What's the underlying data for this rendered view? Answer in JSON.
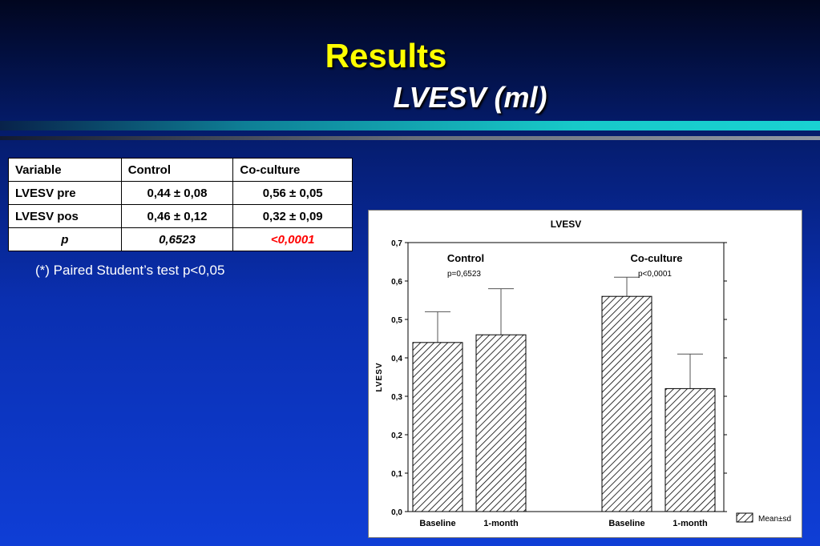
{
  "slide": {
    "title": "Results",
    "subtitle": "LVESV (ml)"
  },
  "table": {
    "headers": [
      "Variable",
      "Control",
      "Co-culture"
    ],
    "rows": [
      [
        "LVESV pre",
        "0,44 ± 0,08",
        "0,56 ±  0,05"
      ],
      [
        "LVESV pos",
        "0,46 ± 0,12",
        "0,32 ± 0,09"
      ],
      [
        "p",
        "0,6523",
        "<0,0001"
      ]
    ],
    "footnote": "(*) Paired Student’s test p<0,05"
  },
  "colors": {
    "title": "#ffff00",
    "significant": "#ff0000",
    "background_top": "#01061f",
    "background_bottom": "#0f3ed6"
  },
  "chart_data": {
    "type": "bar",
    "title": "LVESV",
    "ylabel": "LVESV",
    "ylim": [
      0,
      0.7
    ],
    "yticks": [
      "0,0",
      "0,1",
      "0,2",
      "0,3",
      "0,4",
      "0,5",
      "0,6",
      "0,7"
    ],
    "ytick_values": [
      0,
      0.1,
      0.2,
      0.3,
      0.4,
      0.5,
      0.6,
      0.7
    ],
    "groups": [
      {
        "name": "Control",
        "p_text": "p=0,6523"
      },
      {
        "name": "Co-culture",
        "p_text": "p<0,0001"
      }
    ],
    "bars": [
      {
        "category": "Baseline",
        "group": 0,
        "mean": 0.44,
        "sd": 0.08
      },
      {
        "category": "1-month",
        "group": 0,
        "mean": 0.46,
        "sd": 0.12
      },
      {
        "category": "Baseline",
        "group": 1,
        "mean": 0.56,
        "sd": 0.05
      },
      {
        "category": "1-month",
        "group": 1,
        "mean": 0.32,
        "sd": 0.09
      }
    ],
    "legend": "Mean±sd",
    "legend_position": "bottom-right",
    "fill_pattern": "diagonal-hatch",
    "grid": false
  }
}
